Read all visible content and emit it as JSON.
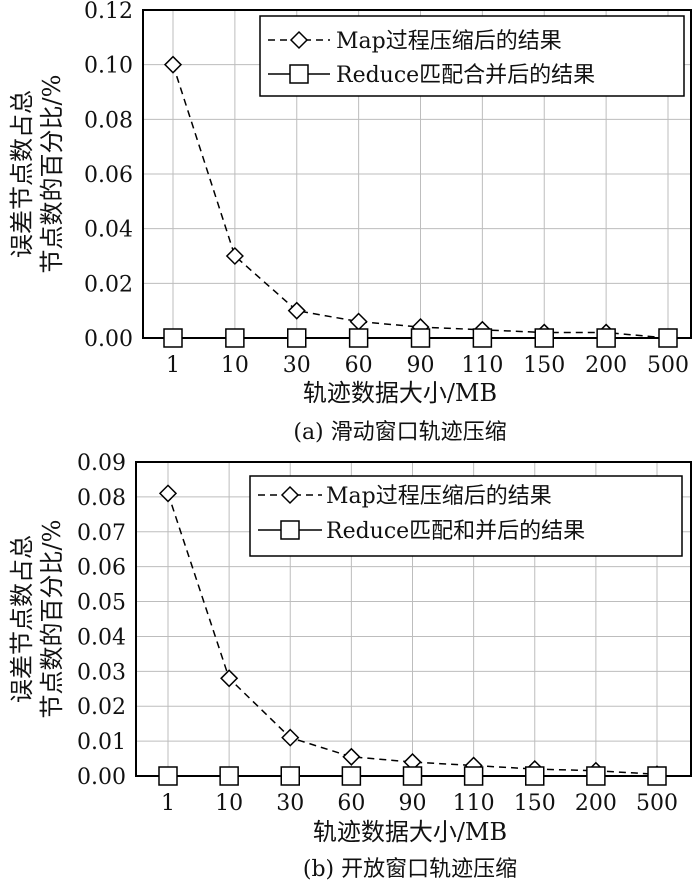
{
  "chart_data": [
    {
      "type": "line",
      "caption": "(a) 滑动窗口轨迹压缩",
      "xlabel": "轨迹数据大小/MB",
      "ylabel_lines": [
        "误差节点数占总",
        "节点数的百分比/%"
      ],
      "categories": [
        "1",
        "10",
        "30",
        "60",
        "90",
        "110",
        "150",
        "200",
        "500"
      ],
      "ylim": [
        0,
        0.12
      ],
      "yticks": [
        "0.00",
        "0.02",
        "0.04",
        "0.06",
        "0.08",
        "0.10",
        "0.12"
      ],
      "grid": true,
      "legend_position": "top-right",
      "series": [
        {
          "name": "Map过程压缩后的结果",
          "style": "dashed",
          "marker": "diamond",
          "values": [
            0.1,
            0.03,
            0.01,
            0.006,
            0.004,
            0.003,
            0.002,
            0.002,
            0.0
          ]
        },
        {
          "name": "Reduce匹配合并后的结果",
          "style": "solid",
          "marker": "square",
          "values": [
            0.0,
            0.0,
            0.0,
            0.0,
            0.0,
            0.0,
            0.0,
            0.0,
            0.0
          ]
        }
      ]
    },
    {
      "type": "line",
      "caption": "(b) 开放窗口轨迹压缩",
      "xlabel": "轨迹数据大小/MB",
      "ylabel_lines": [
        "误差节点数占总",
        "节点数的百分比/%"
      ],
      "categories": [
        "1",
        "10",
        "30",
        "60",
        "90",
        "110",
        "150",
        "200",
        "500"
      ],
      "ylim": [
        0,
        0.09
      ],
      "yticks": [
        "0.00",
        "0.01",
        "0.02",
        "0.03",
        "0.04",
        "0.05",
        "0.06",
        "0.07",
        "0.08",
        "0.09"
      ],
      "grid": true,
      "legend_position": "top-right",
      "series": [
        {
          "name": "Map过程压缩后的结果",
          "style": "dashed",
          "marker": "diamond",
          "values": [
            0.081,
            0.028,
            0.011,
            0.0055,
            0.004,
            0.003,
            0.002,
            0.0015,
            0.0005
          ]
        },
        {
          "name": "Reduce匹配和并后的结果",
          "style": "solid",
          "marker": "square",
          "values": [
            0.0,
            0.0,
            0.0,
            0.0,
            0.0,
            0.0,
            0.0,
            0.0,
            0.0
          ]
        }
      ]
    }
  ]
}
